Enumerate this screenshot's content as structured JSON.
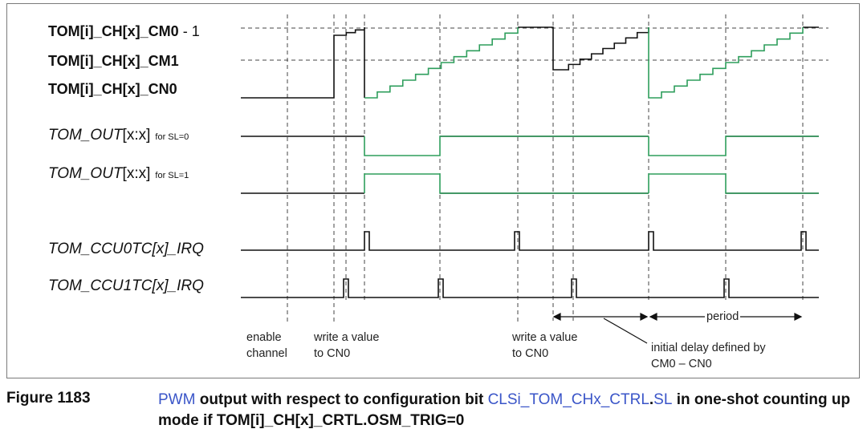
{
  "signals": {
    "cm0": "TOM[i]_CH[x]_CM0",
    "cm0_suffix": "- 1",
    "cm1": "TOM[i]_CH[x]_CM1",
    "cn0": "TOM[i]_CH[x]_CN0",
    "out0_name": "TOM_OUT",
    "out0_idx": "[x:x]",
    "out0_cond": "for SL=0",
    "out1_name": "TOM_OUT",
    "out1_idx": "[x:x]",
    "out1_cond": "for SL=1",
    "ccu0": "TOM_CCU0TC[x]_IRQ",
    "ccu1": "TOM_CCU1TC[x]_IRQ"
  },
  "annotations": {
    "enable_1": "enable",
    "enable_2": "channel",
    "write1_1": "write a value",
    "write1_2": "to CN0",
    "write2_1": "write a value",
    "write2_2": "to CN0",
    "period": "period",
    "delay_1": "initial delay defined by",
    "delay_2": "CM0 – CN0"
  },
  "caption": {
    "number": "Figure 1183",
    "w1": "PWM",
    "t1": " output with respect to configuration bit ",
    "w2": "CLSi_TOM_CHx_CTRL",
    "t2": ".",
    "w3": "SL",
    "t3": " in one-shot counting up mode if TOM[i]_CH[x]_CRTL.OSM_TRIG=0"
  },
  "colors": {
    "green": "#2e9e5c",
    "black": "#111111",
    "blue": "#3a55c8"
  }
}
